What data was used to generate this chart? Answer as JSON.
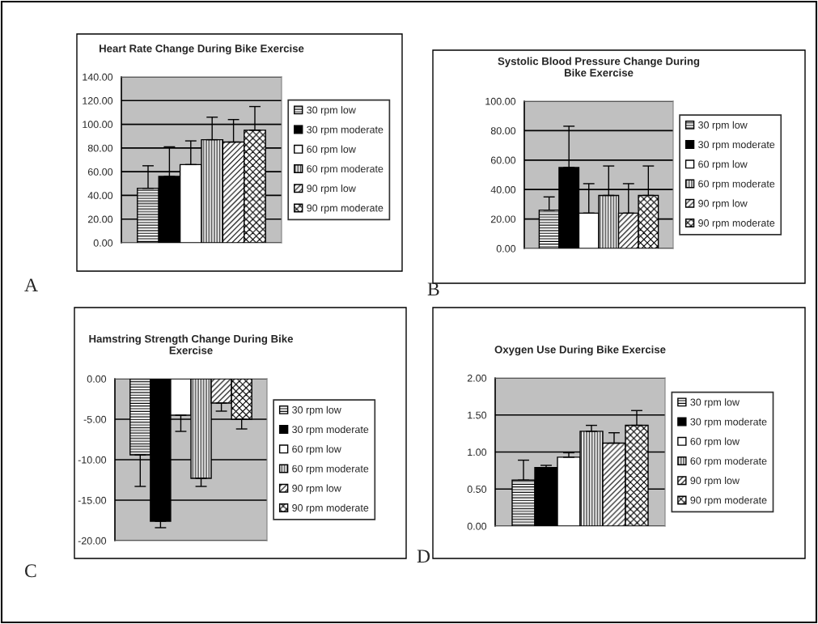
{
  "chart_data": [
    {
      "type": "bar",
      "title": "Heart Rate Change During Bike Exercise",
      "annotations": [
        "A"
      ],
      "categories": [
        null
      ],
      "legend": "right",
      "grid": "y",
      "ylim": [
        0,
        140
      ],
      "yticks": [
        {
          "value": 0,
          "label": "0.00"
        },
        {
          "value": 20,
          "label": "20.00"
        },
        {
          "value": 40,
          "label": "40.00"
        },
        {
          "value": 60,
          "label": "60.00"
        },
        {
          "value": 80,
          "label": "80.00"
        },
        {
          "value": 100,
          "label": "100.00"
        },
        {
          "value": 120,
          "label": "120.00"
        },
        {
          "value": 140,
          "label": "140.00"
        }
      ],
      "series": [
        {
          "name": "30 rpm low",
          "color": "#000000",
          "values": [
            46
          ],
          "errors": [
            [
              46,
              65
            ]
          ]
        },
        {
          "name": "30 rpm moderate",
          "color": "#000000",
          "values": [
            56
          ],
          "errors": [
            [
              56,
              81
            ]
          ]
        },
        {
          "name": "60 rpm low",
          "color": "#ffffff",
          "values": [
            66
          ],
          "errors": [
            [
              66,
              86
            ]
          ]
        },
        {
          "name": "60 rpm moderate",
          "color": "#000000",
          "values": [
            87
          ],
          "errors": [
            [
              87,
              106
            ]
          ]
        },
        {
          "name": "90 rpm low",
          "color": "#000000",
          "values": [
            85
          ],
          "errors": [
            [
              85,
              104
            ]
          ]
        },
        {
          "name": "90 rpm moderate",
          "color": "#000000",
          "values": [
            95
          ],
          "errors": [
            [
              95,
              115
            ]
          ]
        }
      ]
    },
    {
      "type": "bar",
      "title": "Systolic Blood Pressure Change During\nBike Exercise",
      "annotations": [
        "B"
      ],
      "categories": [
        null
      ],
      "legend": "right",
      "grid": "y",
      "ylim": [
        0,
        100
      ],
      "yticks": [
        {
          "value": 0,
          "label": "0.00"
        },
        {
          "value": 20,
          "label": "20.00"
        },
        {
          "value": 40,
          "label": "40.00"
        },
        {
          "value": 60,
          "label": "60.00"
        },
        {
          "value": 80,
          "label": "80.00"
        },
        {
          "value": 100,
          "label": "100.00"
        }
      ],
      "series": [
        {
          "name": "30 rpm low",
          "color": "#000000",
          "values": [
            26
          ],
          "errors": [
            [
              26,
              35
            ]
          ]
        },
        {
          "name": "30 rpm moderate",
          "color": "#000000",
          "values": [
            55
          ],
          "errors": [
            [
              55,
              83
            ]
          ]
        },
        {
          "name": "60 rpm low",
          "color": "#ffffff",
          "values": [
            24
          ],
          "errors": [
            [
              24,
              44
            ]
          ]
        },
        {
          "name": "60 rpm moderate",
          "color": "#000000",
          "values": [
            36
          ],
          "errors": [
            [
              36,
              56
            ]
          ]
        },
        {
          "name": "90 rpm low",
          "color": "#000000",
          "values": [
            24
          ],
          "errors": [
            [
              24,
              44
            ]
          ]
        },
        {
          "name": "90 rpm moderate",
          "color": "#000000",
          "values": [
            36
          ],
          "errors": [
            [
              36,
              56
            ]
          ]
        }
      ]
    },
    {
      "type": "bar",
      "title": "Hamstring Strength Change During Bike\nExercise",
      "annotations": [
        "C"
      ],
      "categories": [
        null
      ],
      "legend": "right",
      "grid": "y",
      "ylim": [
        -20,
        0
      ],
      "yticks": [
        {
          "value": -20,
          "label": "-20.00"
        },
        {
          "value": -15,
          "label": "-15.00"
        },
        {
          "value": -10,
          "label": "-10.00"
        },
        {
          "value": -5,
          "label": "-5.00"
        },
        {
          "value": 0,
          "label": "0.00"
        }
      ],
      "series": [
        {
          "name": "30 rpm low",
          "color": "#000000",
          "values": [
            -9.4
          ],
          "errors": [
            [
              -13.3,
              -9.4
            ]
          ]
        },
        {
          "name": "30 rpm moderate",
          "color": "#000000",
          "values": [
            -17.6
          ],
          "errors": [
            [
              -18.4,
              -17.6
            ]
          ]
        },
        {
          "name": "60 rpm low",
          "color": "#ffffff",
          "values": [
            -4.5
          ],
          "errors": [
            [
              -6.5,
              -4.5
            ]
          ]
        },
        {
          "name": "60 rpm moderate",
          "color": "#000000",
          "values": [
            -12.3
          ],
          "errors": [
            [
              -13.3,
              -12.3
            ]
          ]
        },
        {
          "name": "90 rpm low",
          "color": "#000000",
          "values": [
            -3.0
          ],
          "errors": [
            [
              -4.0,
              -3.0
            ]
          ]
        },
        {
          "name": "90 rpm moderate",
          "color": "#000000",
          "values": [
            -5.0
          ],
          "errors": [
            [
              -6.2,
              -5.0
            ]
          ]
        }
      ]
    },
    {
      "type": "bar",
      "title": "Oxygen Use During Bike Exercise",
      "annotations": [
        "D"
      ],
      "categories": [
        null
      ],
      "legend": "right",
      "grid": "y",
      "ylim": [
        0,
        2
      ],
      "yticks": [
        {
          "value": 0,
          "label": "0.00"
        },
        {
          "value": 0.5,
          "label": "0.50"
        },
        {
          "value": 1,
          "label": "1.00"
        },
        {
          "value": 1.5,
          "label": "1.50"
        },
        {
          "value": 2,
          "label": "2.00"
        }
      ],
      "series": [
        {
          "name": "30 rpm low",
          "color": "#000000",
          "values": [
            0.62
          ],
          "errors": [
            [
              0.62,
              0.89
            ]
          ]
        },
        {
          "name": "30 rpm moderate",
          "color": "#000000",
          "values": [
            0.79
          ],
          "errors": [
            [
              0.79,
              0.82
            ]
          ]
        },
        {
          "name": "60 rpm low",
          "color": "#ffffff",
          "values": [
            0.93
          ],
          "errors": [
            [
              0.93,
              0.99
            ]
          ]
        },
        {
          "name": "60 rpm moderate",
          "color": "#000000",
          "values": [
            1.28
          ],
          "errors": [
            [
              1.28,
              1.36
            ]
          ]
        },
        {
          "name": "90 rpm low",
          "color": "#000000",
          "values": [
            1.12
          ],
          "errors": [
            [
              1.12,
              1.26
            ]
          ]
        },
        {
          "name": "90 rpm moderate",
          "color": "#000000",
          "values": [
            1.36
          ],
          "errors": [
            [
              1.36,
              1.56
            ]
          ]
        }
      ]
    }
  ]
}
